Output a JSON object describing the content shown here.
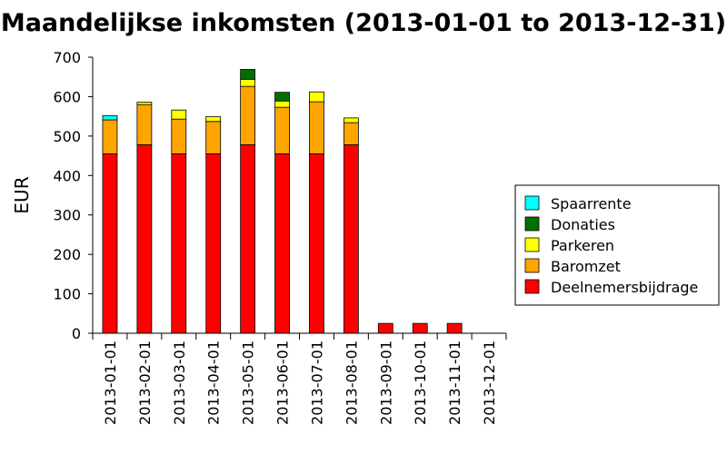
{
  "chart_data": {
    "type": "bar",
    "stacked": true,
    "title": "Maandelijkse inkomsten (2013-01-01 to 2013-12-31)",
    "xlabel": "",
    "ylabel": "EUR",
    "ylim": [
      0,
      700
    ],
    "yticks": [
      "0",
      "100",
      "200",
      "300",
      "400",
      "500",
      "600",
      "700"
    ],
    "grid": false,
    "legend_position": "right",
    "categories": [
      "2013-01-01",
      "2013-02-01",
      "2013-03-01",
      "2013-04-01",
      "2013-05-01",
      "2013-06-01",
      "2013-07-01",
      "2013-08-01",
      "2013-09-01",
      "2013-10-01",
      "2013-11-01",
      "2013-12-01"
    ],
    "series": [
      {
        "name": "Deelnemersbijdrage",
        "color": "#ff0000",
        "values": [
          455,
          478,
          455,
          455,
          478,
          455,
          455,
          478,
          25,
          25,
          25,
          0
        ]
      },
      {
        "name": "Baromzet",
        "color": "#ffa500",
        "values": [
          86,
          102,
          88,
          82,
          148,
          118,
          132,
          56,
          0,
          0,
          0,
          0
        ]
      },
      {
        "name": "Parkeren",
        "color": "#ffff00",
        "values": [
          0,
          6,
          23,
          12,
          18,
          16,
          25,
          12,
          0,
          0,
          0,
          0
        ]
      },
      {
        "name": "Donaties",
        "color": "#007000",
        "values": [
          0,
          0,
          0,
          0,
          25,
          22,
          0,
          0,
          0,
          0,
          0,
          0
        ]
      },
      {
        "name": "Spaarrente",
        "color": "#00ffff",
        "values": [
          11,
          0,
          0,
          0,
          0,
          0,
          0,
          0,
          0,
          0,
          0,
          0
        ]
      }
    ],
    "legend_order": [
      "Spaarrente",
      "Donaties",
      "Parkeren",
      "Baromzet",
      "Deelnemersbijdrage"
    ]
  }
}
